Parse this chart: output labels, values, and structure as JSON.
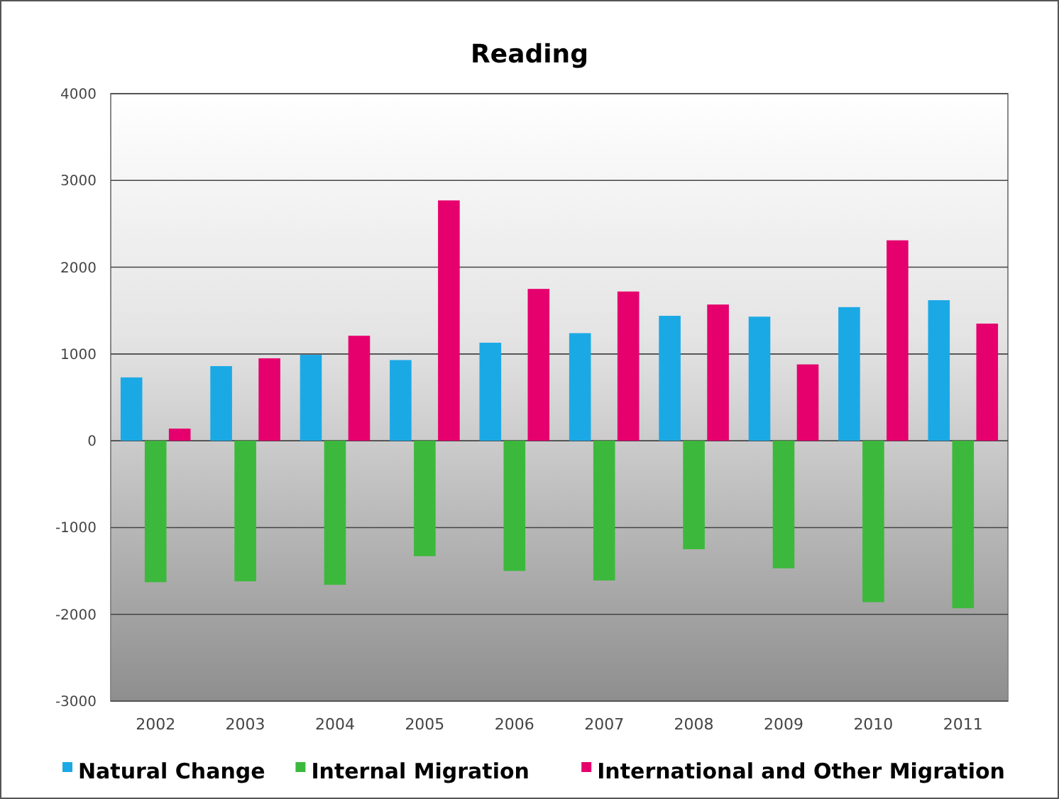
{
  "chart_data": {
    "type": "bar",
    "title": "Reading",
    "categories": [
      "2002",
      "2003",
      "2004",
      "2005",
      "2006",
      "2007",
      "2008",
      "2009",
      "2010",
      "2011"
    ],
    "series": [
      {
        "name": "Natural Change",
        "color": "#1ba9e6",
        "values": [
          730,
          860,
          990,
          930,
          1130,
          1240,
          1440,
          1430,
          1540,
          1620
        ]
      },
      {
        "name": "Internal Migration",
        "color": "#3cb93c",
        "values": [
          -1630,
          -1620,
          -1660,
          -1330,
          -1500,
          -1610,
          -1250,
          -1470,
          -1860,
          -1930
        ]
      },
      {
        "name": "International and Other Migration",
        "color": "#e6006e",
        "values": [
          140,
          950,
          1210,
          2770,
          1750,
          1720,
          1570,
          880,
          2310,
          1350
        ]
      }
    ],
    "ylim": [
      -3000,
      4000
    ],
    "yticks": [
      -3000,
      -2000,
      -1000,
      0,
      1000,
      2000,
      3000,
      4000
    ],
    "grid": "y",
    "legend": "bottom"
  }
}
